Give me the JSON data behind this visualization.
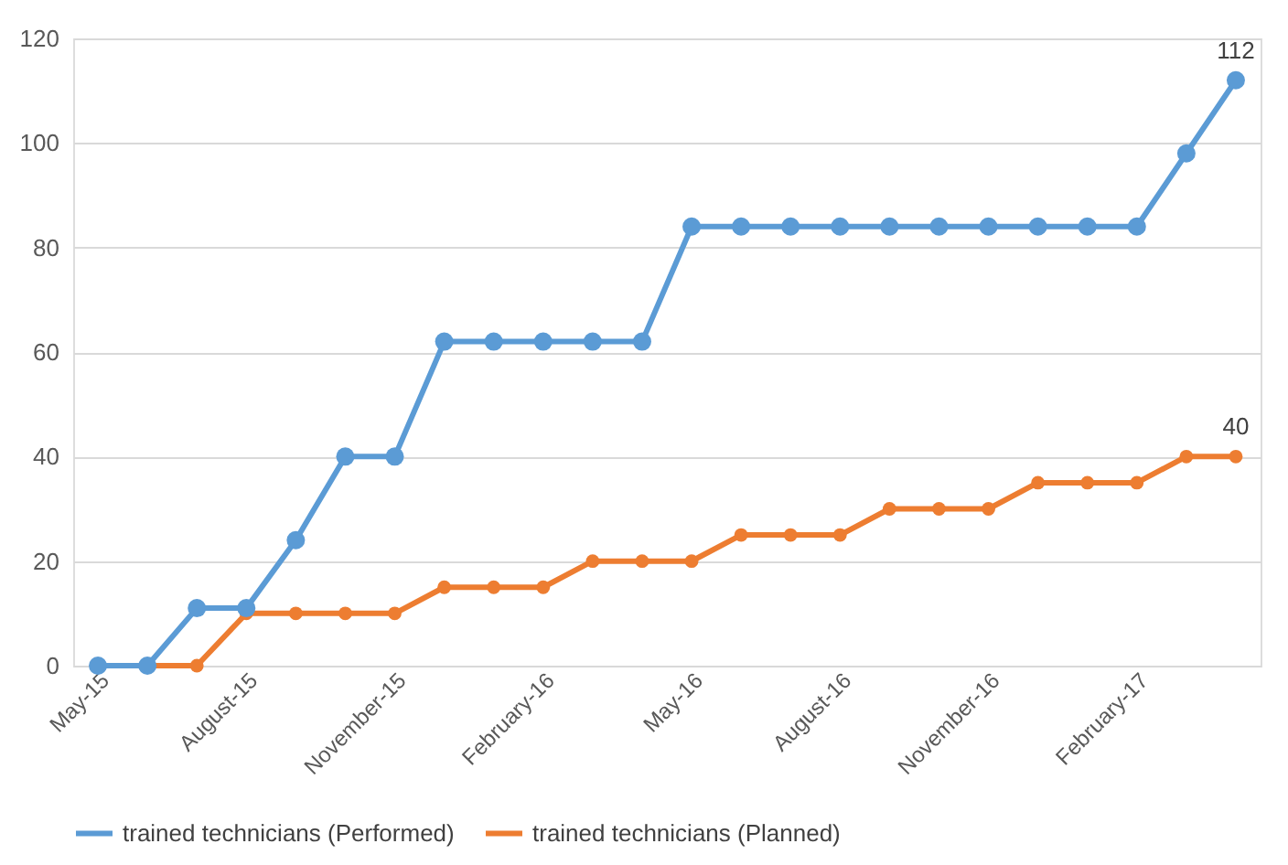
{
  "chart_data": {
    "type": "line",
    "categories": [
      "May-15",
      null,
      null,
      "August-15",
      null,
      null,
      "November-15",
      null,
      null,
      "February-16",
      null,
      null,
      "May-16",
      null,
      null,
      "August-16",
      null,
      null,
      "November-16",
      null,
      null,
      "February-17",
      null,
      null
    ],
    "series": [
      {
        "name": "trained technicians (Performed)",
        "color": "#5b9bd5",
        "values": [
          0,
          0,
          11,
          11,
          24,
          40,
          40,
          62,
          62,
          62,
          62,
          62,
          84,
          84,
          84,
          84,
          84,
          84,
          84,
          84,
          84,
          84,
          98,
          112
        ],
        "value_labels": [
          null,
          null,
          null,
          null,
          null,
          null,
          null,
          null,
          null,
          null,
          null,
          null,
          null,
          null,
          null,
          null,
          null,
          null,
          null,
          null,
          null,
          null,
          null,
          "112"
        ]
      },
      {
        "name": "trained technicians (Planned)",
        "color": "#ed7d31",
        "values": [
          0,
          0,
          0,
          10,
          10,
          10,
          10,
          15,
          15,
          15,
          20,
          20,
          20,
          25,
          25,
          25,
          30,
          30,
          30,
          35,
          35,
          35,
          40,
          40
        ],
        "value_labels": [
          null,
          null,
          null,
          null,
          null,
          null,
          null,
          null,
          null,
          null,
          null,
          null,
          null,
          null,
          null,
          null,
          null,
          null,
          null,
          null,
          null,
          null,
          null,
          "40"
        ]
      }
    ],
    "ylim": [
      0,
      120
    ],
    "yticks": [
      0,
      20,
      40,
      60,
      80,
      100,
      120
    ],
    "grid": "y",
    "legend": "bottom",
    "marker": "circle",
    "line_style": "solid"
  }
}
